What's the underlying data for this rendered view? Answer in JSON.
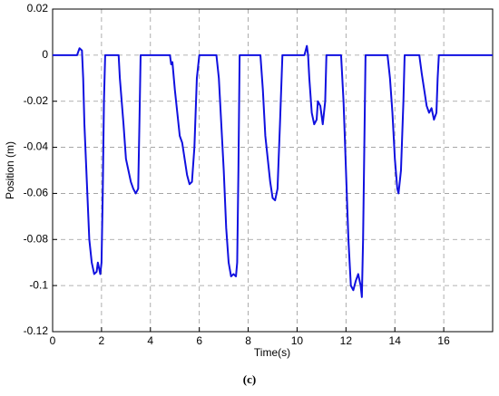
{
  "chart_data": {
    "type": "line",
    "xlabel": "Time(s)",
    "ylabel": "Position (m)",
    "caption": "(c)",
    "color": "#1010e0",
    "grid": true,
    "xlim": [
      0,
      18
    ],
    "xticks": [
      0,
      2,
      4,
      6,
      8,
      10,
      12,
      14,
      16
    ],
    "ylim": [
      -0.12,
      0.02
    ],
    "yticks": [
      0.02,
      0,
      -0.02,
      -0.04,
      -0.06,
      -0.08,
      -0.1,
      -0.12
    ],
    "x": [
      0,
      1.0,
      1.1,
      1.2,
      1.25,
      1.3,
      1.4,
      1.5,
      1.6,
      1.7,
      1.8,
      1.85,
      1.95,
      2.0,
      2.05,
      2.1,
      2.15,
      2.7,
      2.75,
      2.9,
      3.0,
      3.1,
      3.2,
      3.3,
      3.4,
      3.5,
      3.55,
      3.6,
      4.8,
      4.85,
      4.9,
      5.0,
      5.1,
      5.2,
      5.3,
      5.4,
      5.5,
      5.6,
      5.7,
      5.8,
      5.9,
      6.0,
      6.7,
      6.8,
      6.9,
      7.0,
      7.1,
      7.2,
      7.3,
      7.4,
      7.5,
      7.55,
      7.6,
      7.65,
      8.5,
      8.6,
      8.7,
      8.8,
      8.9,
      9.0,
      9.1,
      9.2,
      9.3,
      9.4,
      10.3,
      10.35,
      10.4,
      10.45,
      10.5,
      10.6,
      10.7,
      10.8,
      10.85,
      10.95,
      11.05,
      11.15,
      11.2,
      11.8,
      11.9,
      12.0,
      12.1,
      12.2,
      12.3,
      12.4,
      12.5,
      12.6,
      12.65,
      12.7,
      12.75,
      12.8,
      13.7,
      13.8,
      13.9,
      14.0,
      14.1,
      14.15,
      14.25,
      14.35,
      14.4,
      15.0,
      15.1,
      15.2,
      15.3,
      15.4,
      15.5,
      15.6,
      15.7,
      15.75,
      15.8,
      18
    ],
    "values": [
      0,
      0,
      0.003,
      0.002,
      -0.01,
      -0.03,
      -0.055,
      -0.08,
      -0.09,
      -0.095,
      -0.094,
      -0.09,
      -0.095,
      -0.09,
      -0.06,
      -0.02,
      0,
      0,
      -0.01,
      -0.03,
      -0.045,
      -0.05,
      -0.055,
      -0.058,
      -0.06,
      -0.058,
      -0.03,
      0,
      0,
      -0.004,
      -0.003,
      -0.015,
      -0.025,
      -0.035,
      -0.038,
      -0.045,
      -0.052,
      -0.056,
      -0.055,
      -0.04,
      -0.01,
      0,
      0,
      -0.01,
      -0.03,
      -0.05,
      -0.075,
      -0.09,
      -0.096,
      -0.095,
      -0.096,
      -0.09,
      -0.05,
      0,
      0,
      -0.015,
      -0.035,
      -0.045,
      -0.055,
      -0.062,
      -0.063,
      -0.058,
      -0.03,
      0,
      0,
      0.002,
      0.004,
      0,
      -0.01,
      -0.025,
      -0.03,
      -0.028,
      -0.02,
      -0.022,
      -0.03,
      -0.02,
      0,
      0,
      -0.02,
      -0.05,
      -0.08,
      -0.1,
      -0.102,
      -0.098,
      -0.095,
      -0.1,
      -0.105,
      -0.08,
      -0.04,
      0,
      0,
      -0.01,
      -0.025,
      -0.045,
      -0.058,
      -0.06,
      -0.05,
      -0.02,
      0,
      0,
      -0.008,
      -0.015,
      -0.022,
      -0.025,
      -0.023,
      -0.028,
      -0.025,
      -0.01,
      0,
      0
    ]
  }
}
